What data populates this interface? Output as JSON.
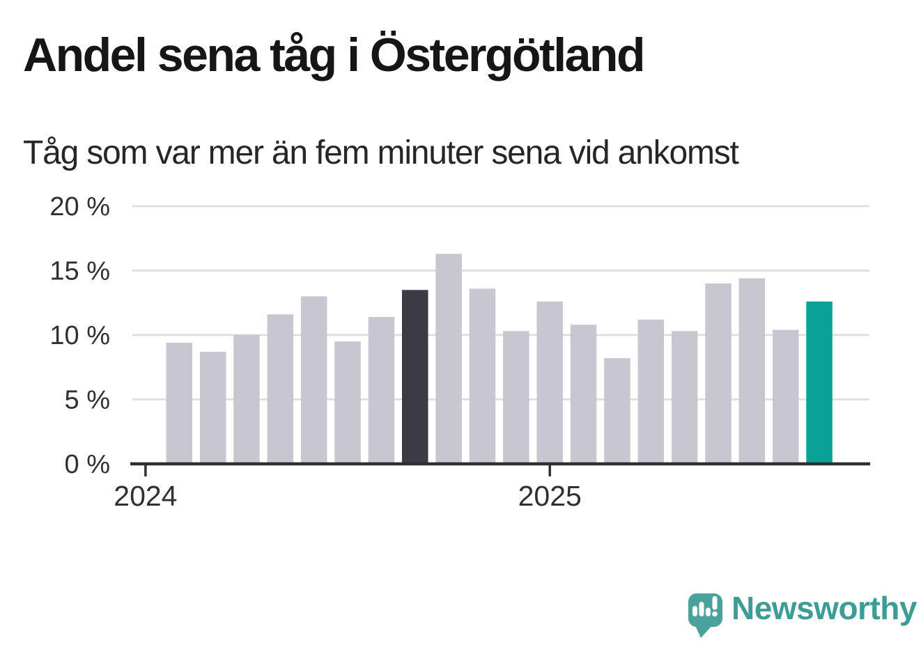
{
  "chart_data": {
    "type": "bar",
    "title": "Andel sena tåg i Östergötland",
    "subtitle": "Tåg som var mer än fem minuter sena vid ankomst",
    "unit": "%",
    "ylim": [
      0,
      20
    ],
    "grid": "horizontal",
    "legend": "none",
    "y_ticks": [
      0,
      5,
      10,
      15,
      20
    ],
    "y_tick_labels": [
      "0 %",
      "5 %",
      "10 %",
      "15 %",
      "20 %"
    ],
    "x_tick_labels": [
      {
        "label": "2024",
        "bar_index": -1
      },
      {
        "label": "2025",
        "bar_index": 11
      }
    ],
    "values": [
      9.4,
      8.7,
      10.0,
      11.6,
      13.0,
      9.5,
      11.4,
      13.5,
      16.3,
      13.6,
      10.3,
      12.6,
      10.8,
      8.2,
      11.2,
      10.3,
      14.0,
      14.4,
      10.4,
      12.6
    ],
    "highlighted_bars": {
      "dark_index": 7,
      "teal_index": 19
    },
    "colors": {
      "bar_default": "#C7C6D1",
      "bar_dark": "#3B3B46",
      "bar_teal": "#08A296",
      "gridline": "#DEDEDE",
      "axis": "#2F2F2F",
      "tick_text": "#303030",
      "title_text": "#161616",
      "subtitle_text": "#262626"
    }
  },
  "footer": {
    "logo_text": "Newsworthy",
    "logo_text_color": "#3E9C96",
    "logo_mark_color": "#4AA29C",
    "logo_icon": "newsworthy-speech-bubble-bars-icon"
  }
}
